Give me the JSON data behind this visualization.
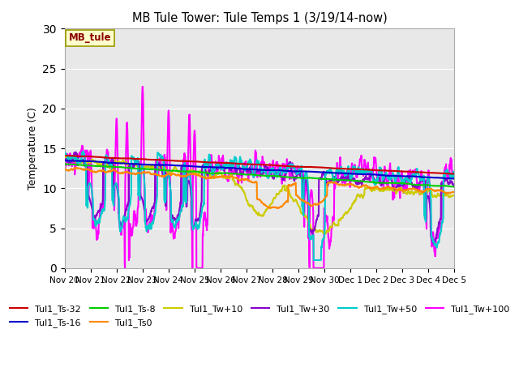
{
  "title": "MB Tule Tower: Tule Temps 1 (3/19/14-now)",
  "ylabel": "Temperature (C)",
  "xlim": [
    0,
    15
  ],
  "ylim": [
    0,
    30
  ],
  "yticks": [
    0,
    5,
    10,
    15,
    20,
    25,
    30
  ],
  "xtick_labels": [
    "Nov 20",
    "Nov 21",
    "Nov 22",
    "Nov 23",
    "Nov 24",
    "Nov 25",
    "Nov 26",
    "Nov 27",
    "Nov 28",
    "Nov 29",
    "Nov 30",
    "Dec 1",
    "Dec 2",
    "Dec 3",
    "Dec 4",
    "Dec 5"
  ],
  "legend_label": "MB_tule",
  "bg_color": "#e8e8e8",
  "series": {
    "Tul1_Ts-32": {
      "color": "#cc0000",
      "lw": 1.5
    },
    "Tul1_Ts-16": {
      "color": "#0000cc",
      "lw": 1.5
    },
    "Tul1_Ts-8": {
      "color": "#00cc00",
      "lw": 1.5
    },
    "Tul1_Ts0": {
      "color": "#ff8800",
      "lw": 1.5
    },
    "Tul1_Tw+10": {
      "color": "#cccc00",
      "lw": 1.5
    },
    "Tul1_Tw+30": {
      "color": "#8800cc",
      "lw": 1.5
    },
    "Tul1_Tw+50": {
      "color": "#00cccc",
      "lw": 1.5
    },
    "Tul1_Tw+100": {
      "color": "#ff00ff",
      "lw": 1.5
    }
  }
}
